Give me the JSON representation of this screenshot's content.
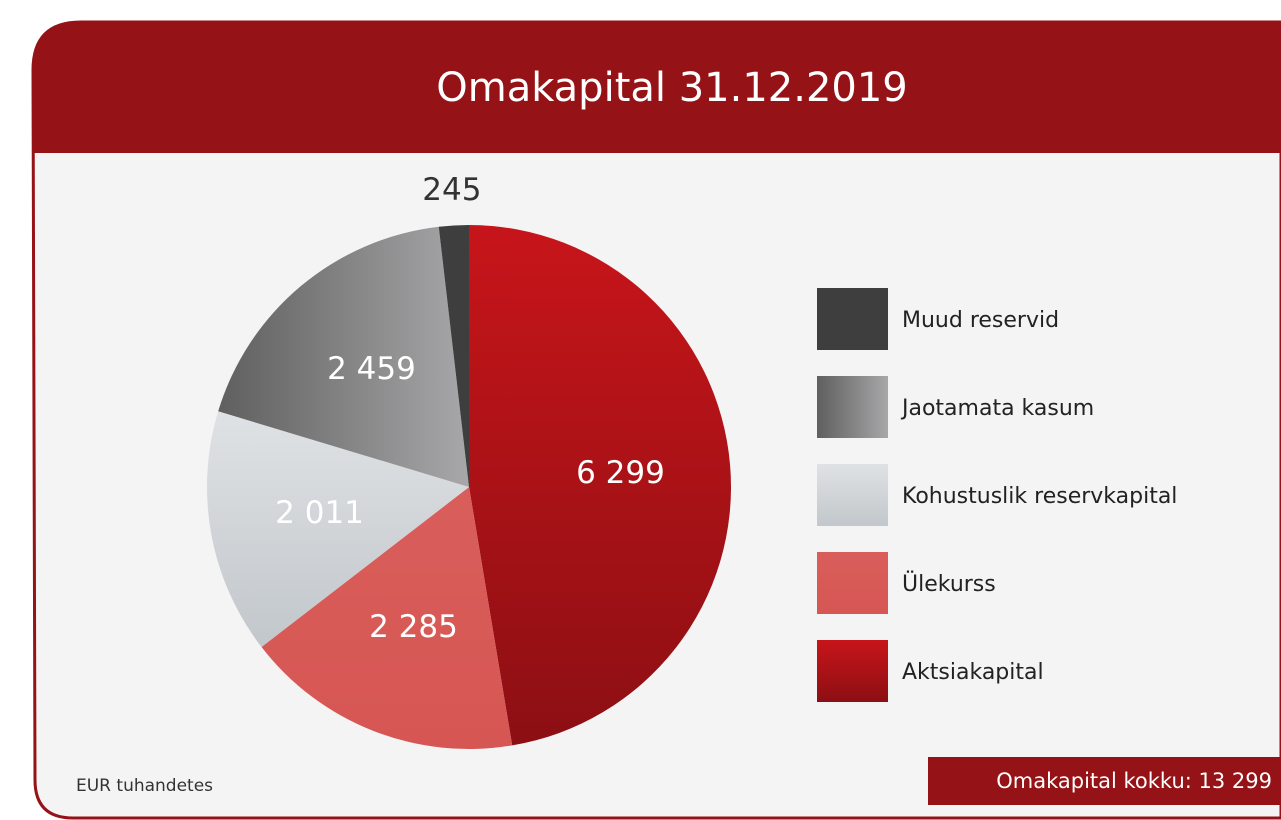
{
  "chart_data": {
    "type": "pie",
    "title": "Omakapital 31.12.2019",
    "categories": [
      "Aktsiakapital",
      "Ülekurss",
      "Kohustuslik reservkapital",
      "Jaotamata kasum",
      "Muud reservid"
    ],
    "values": [
      6299,
      2285,
      2011,
      2459,
      245
    ],
    "value_labels": [
      "6 299",
      "2 285",
      "2 011",
      "2 459",
      "245"
    ],
    "colors": [
      [
        "#c7151a",
        "#8c0f13"
      ],
      [
        "#d95e5b",
        "#d65653"
      ],
      [
        "#dfe2e5",
        "#c2c7cb"
      ],
      [
        "#a8a7a9",
        "#5f5f5f"
      ],
      [
        "#3e3e3e",
        "#3e3e3e"
      ]
    ],
    "unit_note": "EUR tuhandetes",
    "total_label": "Omakapital kokku: 13 299"
  }
}
